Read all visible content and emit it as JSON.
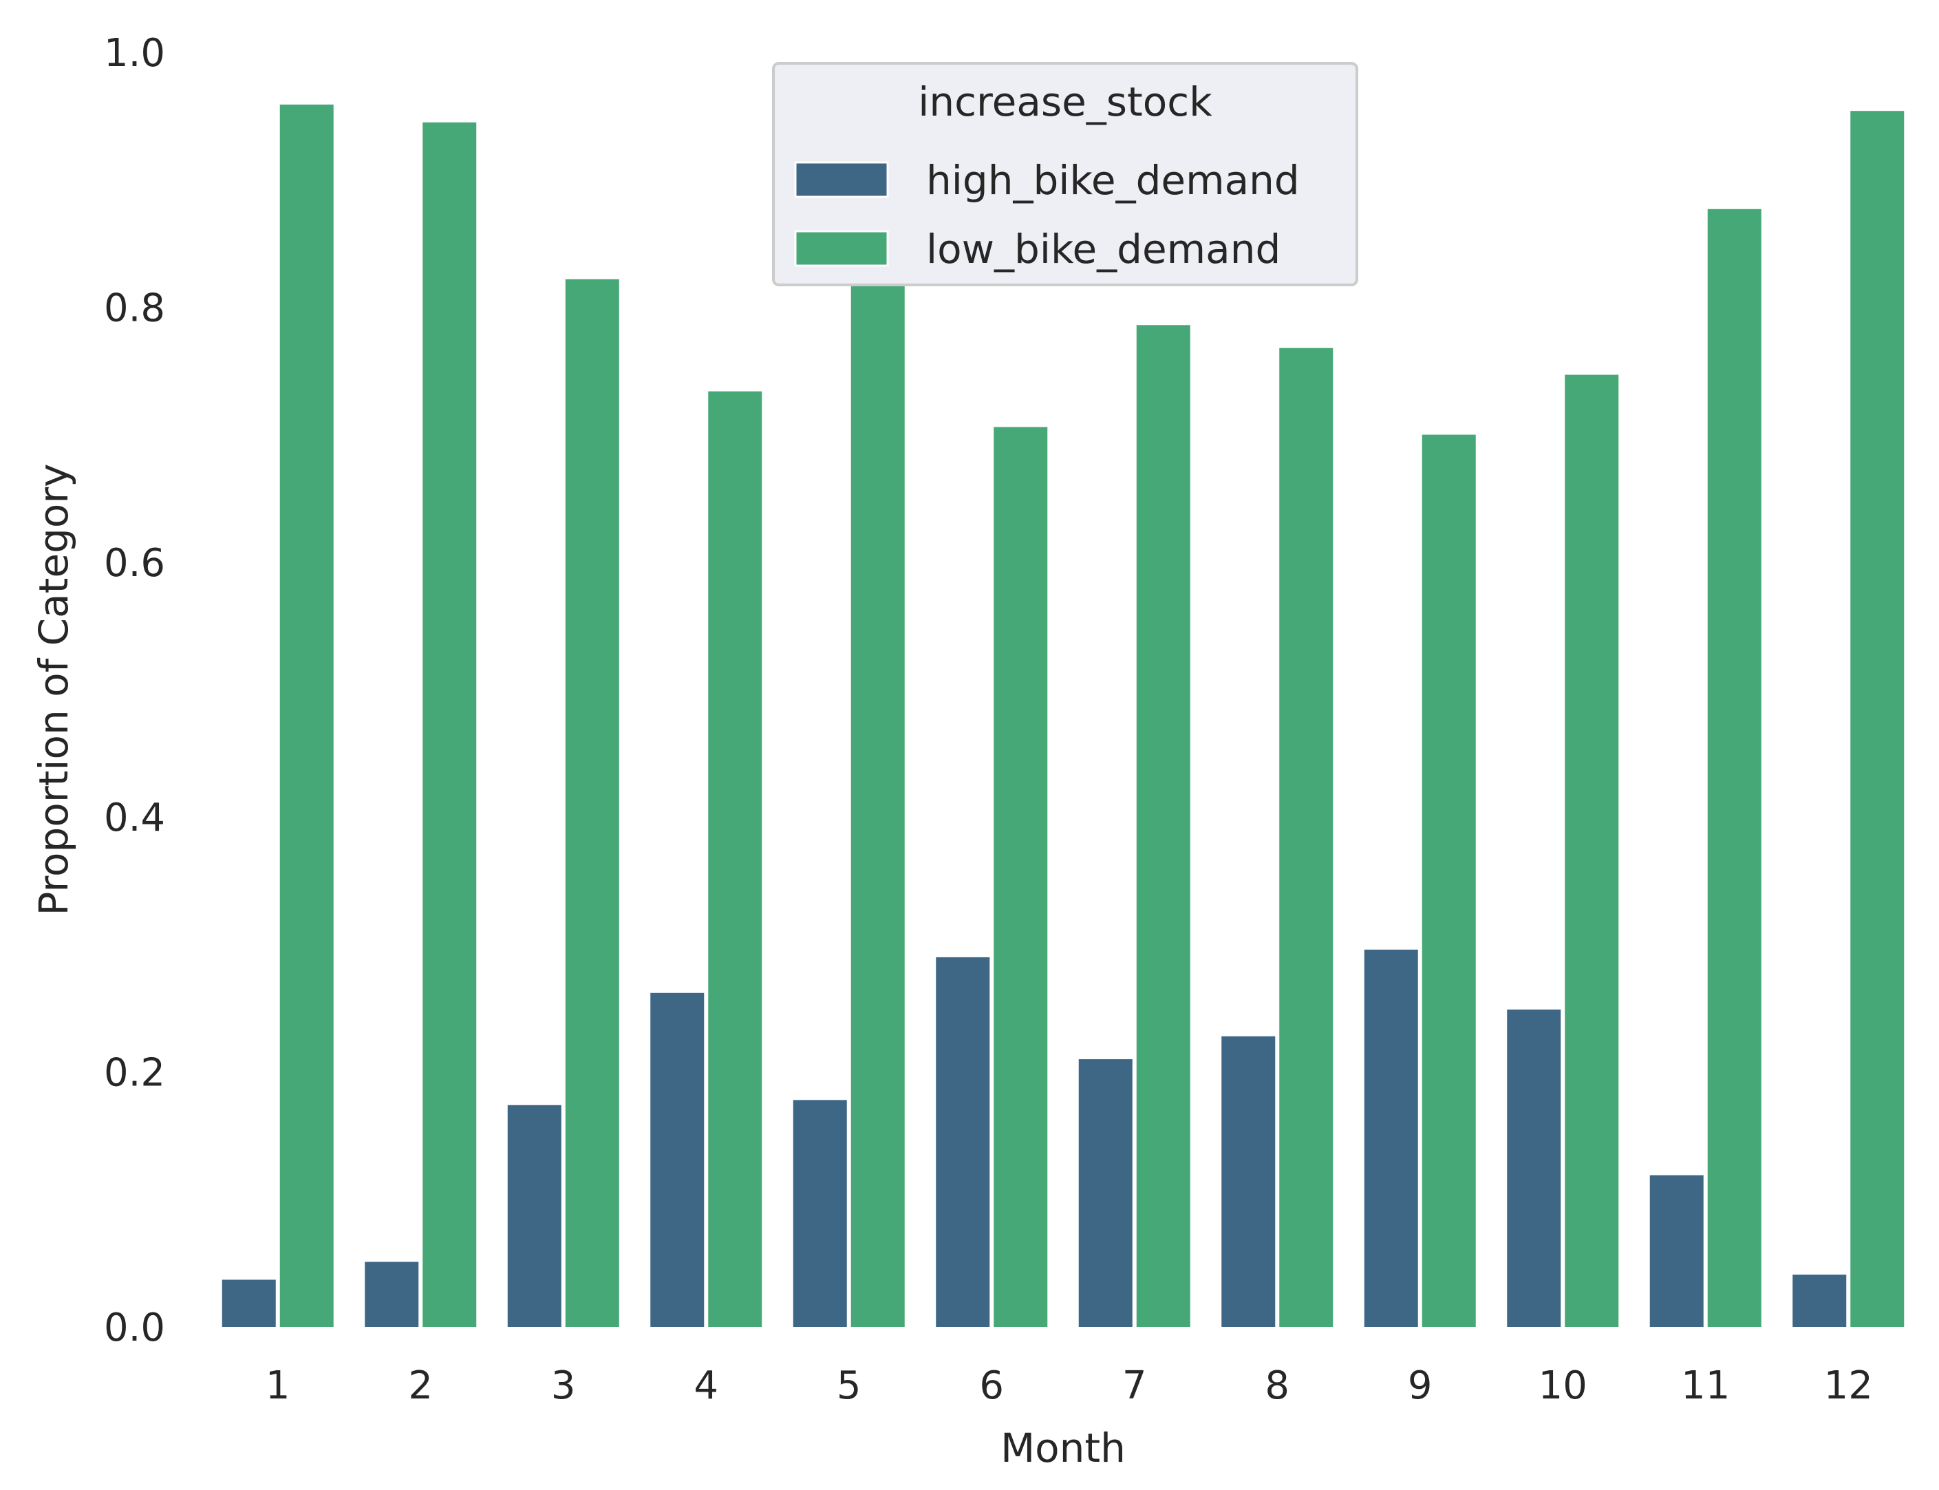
{
  "chart_data": {
    "type": "bar",
    "title": "",
    "xlabel": "Month",
    "ylabel": "Proportion of Category",
    "ylim": [
      0,
      1.0
    ],
    "yticks": [
      "0.0",
      "0.2",
      "0.4",
      "0.6",
      "0.8",
      "1.0"
    ],
    "ytick_values": [
      0,
      0.2,
      0.4,
      0.6,
      0.8,
      1.0
    ],
    "categories": [
      "1",
      "2",
      "3",
      "4",
      "5",
      "6",
      "7",
      "8",
      "9",
      "10",
      "11",
      "12"
    ],
    "grid": false,
    "legend": {
      "title": "increase_stock",
      "placement": "top-center"
    },
    "series": [
      {
        "name": "high_bike_demand",
        "color": "#3e6685",
        "values": [
          0.037,
          0.051,
          0.174,
          0.262,
          0.178,
          0.29,
          0.21,
          0.228,
          0.296,
          0.249,
          0.119,
          0.041
        ]
      },
      {
        "name": "low_bike_demand",
        "color": "#46a876",
        "values": [
          0.959,
          0.945,
          0.822,
          0.734,
          0.818,
          0.706,
          0.786,
          0.768,
          0.7,
          0.747,
          0.877,
          0.954
        ]
      }
    ]
  }
}
